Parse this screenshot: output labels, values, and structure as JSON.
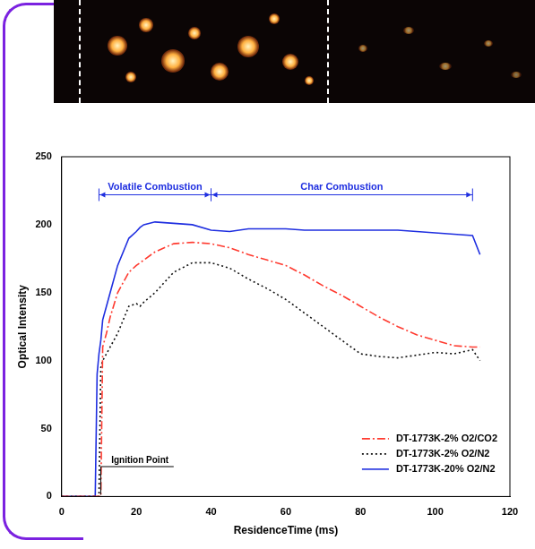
{
  "chart_data": {
    "type": "line",
    "x_label": "ResidenceTime (ms)",
    "y_label": "Optical Intensity",
    "x": [
      0,
      9,
      9.5,
      10,
      10.5,
      11,
      12,
      13,
      15,
      18,
      20,
      21,
      22,
      25,
      30,
      35,
      40,
      45,
      50,
      55,
      60,
      65,
      70,
      75,
      80,
      85,
      90,
      95,
      100,
      105,
      110,
      112
    ],
    "series": [
      {
        "name": "DT-1773K-2% O2/CO2",
        "color": "#ff3b30",
        "line_style": "dashdot",
        "values": [
          0,
          0,
          0,
          0,
          0,
          110,
          120,
          132,
          150,
          165,
          170,
          172,
          174,
          180,
          186,
          187,
          186,
          183,
          178,
          174,
          170,
          163,
          155,
          148,
          140,
          132,
          125,
          119,
          115,
          111,
          110,
          110
        ]
      },
      {
        "name": "DT-1773K-2% O2/N2",
        "color": "#111111",
        "line_style": "dotted",
        "values": [
          0,
          0,
          0,
          0,
          95,
          100,
          105,
          110,
          120,
          140,
          142,
          140,
          143,
          150,
          165,
          172,
          172,
          168,
          160,
          153,
          145,
          135,
          125,
          115,
          105,
          103,
          102,
          104,
          106,
          105,
          108,
          100
        ]
      },
      {
        "name": "DT-1773K-20% O2/N2",
        "color": "#1f2fe0",
        "line_style": "solid",
        "values": [
          0,
          0,
          90,
          105,
          115,
          130,
          140,
          150,
          170,
          190,
          195,
          198,
          200,
          202,
          201,
          200,
          196,
          195,
          197,
          197,
          197,
          196,
          196,
          196,
          196,
          196,
          196,
          195,
          194,
          193,
          192,
          178
        ]
      }
    ],
    "xlim": [
      0,
      120
    ],
    "xticks": [
      0,
      20,
      40,
      60,
      80,
      100,
      120
    ],
    "ylim": [
      0,
      250
    ],
    "yticks": [
      0,
      50,
      100,
      150,
      200,
      250
    ],
    "grid": false,
    "legend": "lower right",
    "annotations": [
      {
        "text": "Volatile Combustion",
        "x": [
          10,
          40
        ],
        "y": 222
      },
      {
        "text": "Char Combustion",
        "x": [
          40,
          110
        ],
        "y": 222
      },
      {
        "text": "Ignition Point",
        "x": [
          10,
          30
        ],
        "y": 22
      }
    ]
  }
}
